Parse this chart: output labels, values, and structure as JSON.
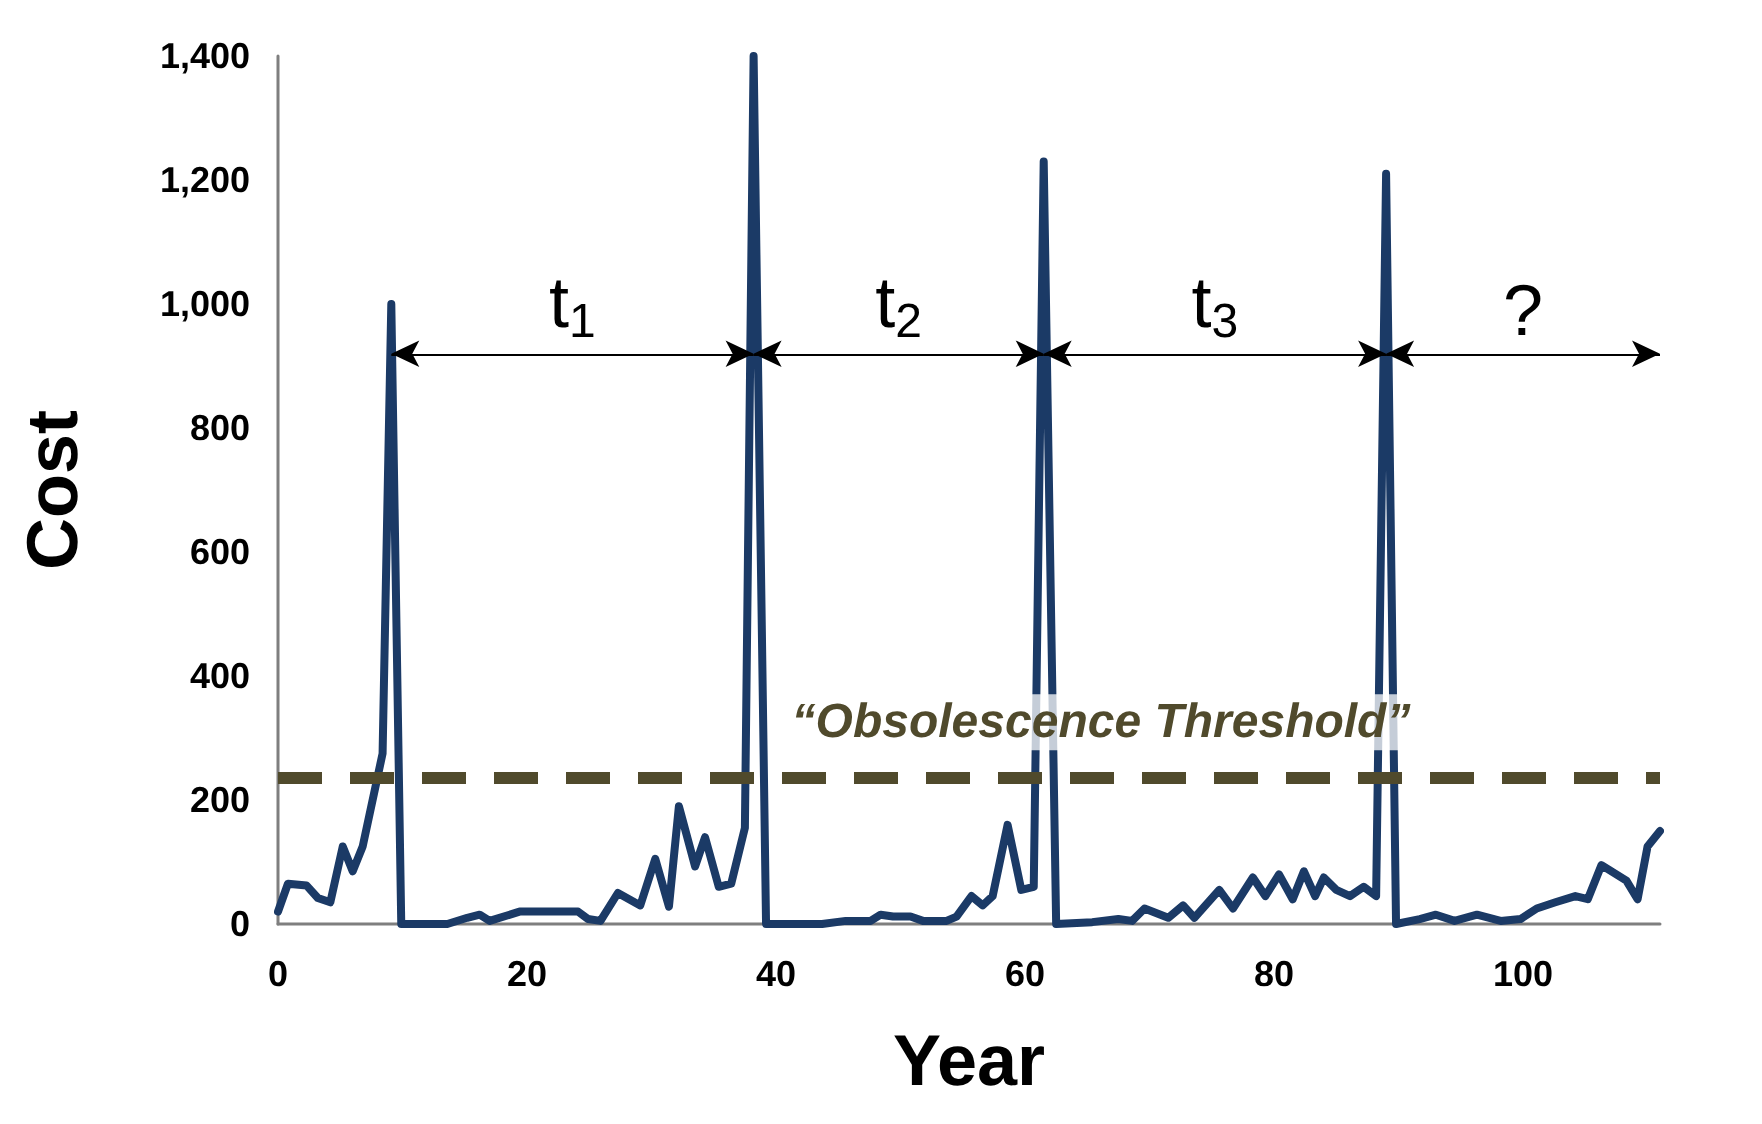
{
  "chart_data": {
    "type": "line",
    "xlabel": "Year",
    "ylabel": "Cost",
    "series": [
      {
        "color": "#1b3a66",
        "x": [
          0,
          0.8,
          2.3,
          3.2,
          4.2,
          5.2,
          6,
          6.8,
          8.4,
          9.1,
          9.9,
          13.6,
          15.2,
          16.2,
          17,
          19.4,
          24.1,
          24.9,
          25.9,
          27.3,
          29.1,
          30.3,
          31.4,
          32.2,
          33.5,
          34.3,
          35.4,
          36.4,
          37.5,
          38.2,
          39.2,
          43.7,
          45.6,
          47.6,
          48.4,
          49.4,
          50.8,
          51.8,
          53.7,
          54.5,
          55.7,
          56.6,
          57.4,
          58.6,
          59.7,
          60.7,
          61.5,
          62.5,
          65.4,
          67.5,
          68.6,
          69.6,
          71.5,
          72.7,
          73.6,
          75.6,
          76.7,
          78.3,
          79.3,
          80.4,
          81.5,
          82.4,
          83.3,
          84,
          85,
          86.1,
          87.2,
          88.2,
          89,
          89.8,
          91.7,
          93,
          94.5,
          96.3,
          98.2,
          99.8,
          101.1,
          102.6,
          104.2,
          105.2,
          106.3,
          108.3,
          109.2,
          110,
          111
        ],
        "values": [
          20,
          65,
          62,
          42,
          35,
          125,
          85,
          125,
          275,
          1000,
          0,
          0,
          10,
          15,
          5,
          20,
          20,
          8,
          5,
          50,
          30,
          105,
          28,
          190,
          93,
          140,
          60,
          65,
          155,
          1400,
          0,
          0,
          5,
          5,
          15,
          12,
          12,
          5,
          5,
          12,
          45,
          30,
          45,
          160,
          55,
          60,
          1230,
          0,
          3,
          8,
          5,
          25,
          10,
          30,
          10,
          55,
          25,
          75,
          45,
          80,
          40,
          85,
          45,
          75,
          55,
          45,
          60,
          45,
          1210,
          0,
          8,
          15,
          5,
          15,
          5,
          8,
          25,
          35,
          45,
          40,
          95,
          70,
          40,
          125,
          150
        ]
      }
    ],
    "xlim": [
      0,
      111
    ],
    "xticks": [
      0,
      20,
      40,
      60,
      80,
      100
    ],
    "ylim": [
      0,
      1400
    ],
    "yticks": [
      0,
      200,
      400,
      600,
      800,
      {
        "value": 1000,
        "label": "1,000"
      },
      {
        "value": 1200,
        "label": "1,200"
      },
      {
        "value": 1400,
        "label": "1,400"
      }
    ],
    "marker": "none",
    "line_style": "solid",
    "ref_lines": [
      {
        "axis": "y",
        "value": 235,
        "label": "“Obsolescence Threshold”",
        "color": "#504a2c",
        "line_style": "dashed"
      }
    ],
    "annotations": [
      "t$_{1}$",
      "t$_{2}$",
      "t$_{3}$",
      "?"
    ]
  }
}
